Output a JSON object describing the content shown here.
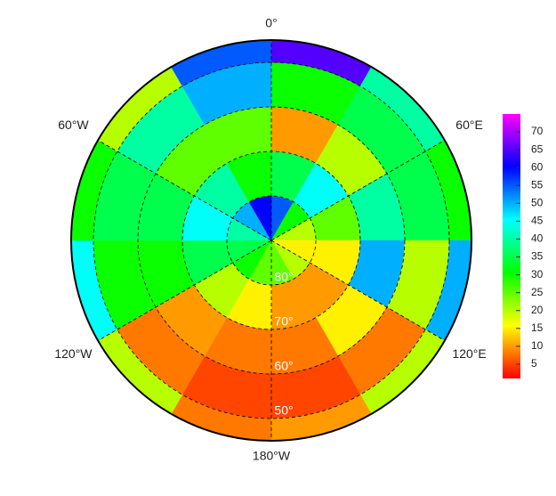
{
  "chart_data": {
    "type": "polar_heatmap",
    "lon_labels": [
      {
        "value": 0,
        "label": "0°"
      },
      {
        "value": 60,
        "label": "60°E"
      },
      {
        "value": 120,
        "label": "120°E"
      },
      {
        "value": 180,
        "label": "180°W"
      },
      {
        "value": -120,
        "label": "120°W"
      },
      {
        "value": -60,
        "label": "60°W"
      }
    ],
    "lat_labels": [
      {
        "value": 80,
        "label": "80°"
      },
      {
        "value": 70,
        "label": "70°"
      },
      {
        "value": 60,
        "label": "60°"
      },
      {
        "value": 50,
        "label": "50°"
      }
    ],
    "latlim": [
      45,
      90
    ],
    "ring_edges": [
      90,
      80,
      70,
      60,
      50,
      45
    ],
    "lon_edges": [
      0,
      30,
      60,
      90,
      120,
      150,
      180,
      210,
      240,
      270,
      300,
      330,
      360
    ],
    "values": [
      [
        55,
        30,
        20,
        15,
        20,
        25,
        25,
        30,
        35,
        40,
        50,
        60
      ],
      [
        35,
        45,
        25,
        15,
        10,
        10,
        15,
        20,
        35,
        45,
        40,
        30
      ],
      [
        10,
        20,
        40,
        50,
        15,
        8,
        8,
        10,
        30,
        35,
        25,
        25
      ],
      [
        30,
        35,
        35,
        20,
        8,
        5,
        5,
        8,
        30,
        35,
        40,
        50
      ],
      [
        65,
        40,
        30,
        50,
        20,
        10,
        8,
        20,
        45,
        30,
        20,
        55
      ]
    ],
    "clim": [
      1,
      75
    ],
    "cticks": [
      5,
      10,
      15,
      20,
      25,
      30,
      35,
      40,
      45,
      50,
      55,
      60,
      65,
      70
    ],
    "colormap": [
      "#ff0000",
      "#ffff00",
      "#00ff00",
      "#00ffff",
      "#0000ff",
      "#ff00ff"
    ],
    "grid": true
  }
}
